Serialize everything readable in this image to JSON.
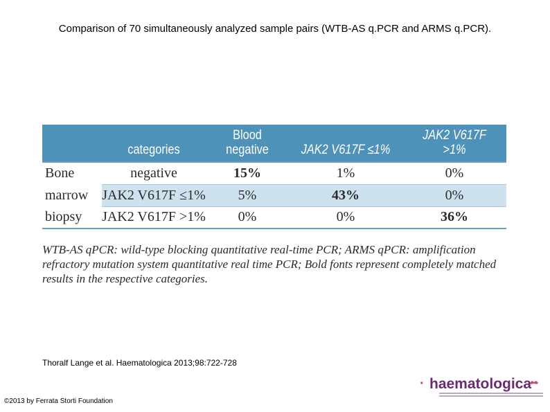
{
  "slide": {
    "title": "Comparison of 70 simultaneously analyzed sample pairs (WTB-AS q.PCR and ARMS q.PCR).",
    "citation": "Thoralf Lange et al. Haematologica 2013;98:722-728",
    "copyright": "©2013 by Ferrata Storti Foundation"
  },
  "table": {
    "headers": {
      "categories": "categories",
      "blood_line1": "Blood",
      "blood_line2": "negative",
      "jak2_le": "JAK2 V617F ≤1%",
      "jak2_gt": "JAK2 V617F >1%"
    },
    "rows": [
      {
        "label": "Bone",
        "category": "negative",
        "values": [
          "15%",
          "1%",
          "0%"
        ]
      },
      {
        "label": "marrow",
        "category": "JAK2 V617F ≤1%",
        "values": [
          "5%",
          "43%",
          "0%"
        ]
      },
      {
        "label": "biopsy",
        "category": "JAK2 V617F >1%",
        "values": [
          "0%",
          "0%",
          "36%"
        ]
      }
    ],
    "footnote": "WTB-AS qPCR: wild-type blocking quantitative real-time PCR; ARMS qPCR: amplification refractory mutation system quantitative real time PCR; Bold fonts represent completely matched results in the respective categories."
  },
  "logo": {
    "name": "haematologica",
    "icon": "journal-logo-icon",
    "brand_color": "#6b2b73",
    "accent_color": "#c44a86"
  },
  "colors": {
    "header_bg": "#4f92b9",
    "highlight_row": "#cde1ef"
  }
}
